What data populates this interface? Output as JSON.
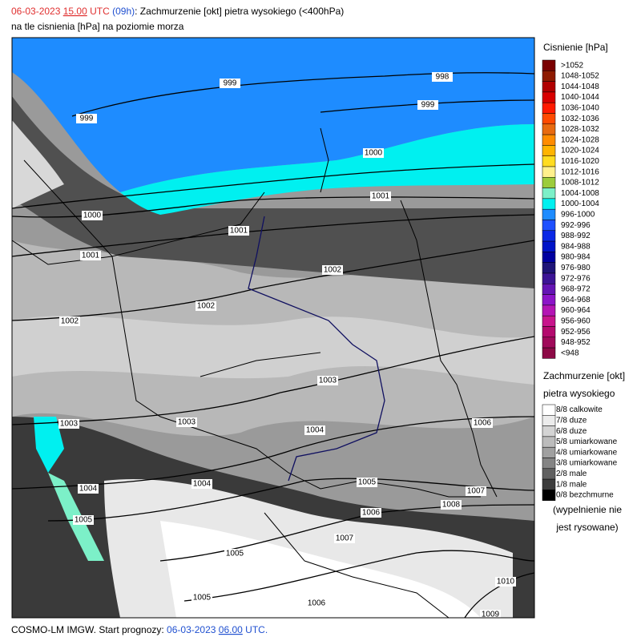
{
  "header": {
    "date": "06-03-2023",
    "time": "15.00",
    "utc": "UTC",
    "lead": "(09h)",
    "title": ": Zachmurzenie [okt] pietra wysokiego (<400hPa)",
    "subtitle": "na tle cisnienia [hPa] na poziomie morza"
  },
  "pressure_legend": {
    "title": "Cisnienie [hPa]",
    "items": [
      {
        "label": ">1052",
        "color": "#7a0000"
      },
      {
        "label": "1048-1052",
        "color": "#8e1a00"
      },
      {
        "label": "1044-1048",
        "color": "#b00000"
      },
      {
        "label": "1040-1044",
        "color": "#d80000"
      },
      {
        "label": "1036-1040",
        "color": "#ff1a00"
      },
      {
        "label": "1032-1036",
        "color": "#ff4a00"
      },
      {
        "label": "1028-1032",
        "color": "#e86a10"
      },
      {
        "label": "1024-1028",
        "color": "#ff8c00"
      },
      {
        "label": "1020-1024",
        "color": "#ffb400"
      },
      {
        "label": "1016-1020",
        "color": "#ffdc20"
      },
      {
        "label": "1012-1016",
        "color": "#fff08c"
      },
      {
        "label": "1008-1012",
        "color": "#9ccc3c"
      },
      {
        "label": "1004-1008",
        "color": "#7cf0c8"
      },
      {
        "label": "1000-1004",
        "color": "#00f0f0"
      },
      {
        "label": "996-1000",
        "color": "#1e8cff"
      },
      {
        "label": "992-996",
        "color": "#1e50ff"
      },
      {
        "label": "988-992",
        "color": "#0a28e6"
      },
      {
        "label": "984-988",
        "color": "#0014c8"
      },
      {
        "label": "980-984",
        "color": "#0000a0"
      },
      {
        "label": "976-980",
        "color": "#1e1478"
      },
      {
        "label": "972-976",
        "color": "#3c1496"
      },
      {
        "label": "968-972",
        "color": "#6414b4"
      },
      {
        "label": "964-968",
        "color": "#8c14c8"
      },
      {
        "label": "960-964",
        "color": "#b414b4"
      },
      {
        "label": "956-960",
        "color": "#c8148c"
      },
      {
        "label": "952-956",
        "color": "#b40a6e"
      },
      {
        "label": "948-952",
        "color": "#a00a5a"
      },
      {
        "label": "<948",
        "color": "#8c0a46"
      }
    ]
  },
  "cloud_legend": {
    "title": "Zachmurzenie [okt]",
    "subtitle": "pietra wysokiego",
    "items": [
      {
        "label": "8/8 calkowite",
        "color": "#ffffff"
      },
      {
        "label": "7/8 duze",
        "color": "#ececec"
      },
      {
        "label": "6/8 duze",
        "color": "#d4d4d4"
      },
      {
        "label": "5/8 umiarkowane",
        "color": "#bcbcbc"
      },
      {
        "label": "4/8 umiarkowane",
        "color": "#a0a0a0"
      },
      {
        "label": "3/8 umiarkowane",
        "color": "#848484"
      },
      {
        "label": "2/8 male",
        "color": "#606060"
      },
      {
        "label": "1/8 male",
        "color": "#3c3c3c"
      },
      {
        "label": "0/8 bezchmurne",
        "color": "#000000"
      }
    ],
    "note": [
      "(wypelnienie nie",
      "jest rysowane)"
    ]
  },
  "isobar_labels": [
    "999",
    "998",
    "999",
    "999",
    "1000",
    "1001",
    "1000",
    "1001",
    "1001",
    "1002",
    "1002",
    "1002",
    "1003",
    "1003",
    "1003",
    "1004",
    "1006",
    "1004",
    "1004",
    "1005",
    "1007",
    "1008",
    "1005",
    "1006",
    "1007",
    "1005",
    "1010",
    "1005",
    "1006",
    "1009"
  ],
  "footer": {
    "model": "COSMO-LM IMGW. Start prognozy: ",
    "date": "06-03-2023",
    "time": "06.00",
    "utc": "UTC."
  }
}
